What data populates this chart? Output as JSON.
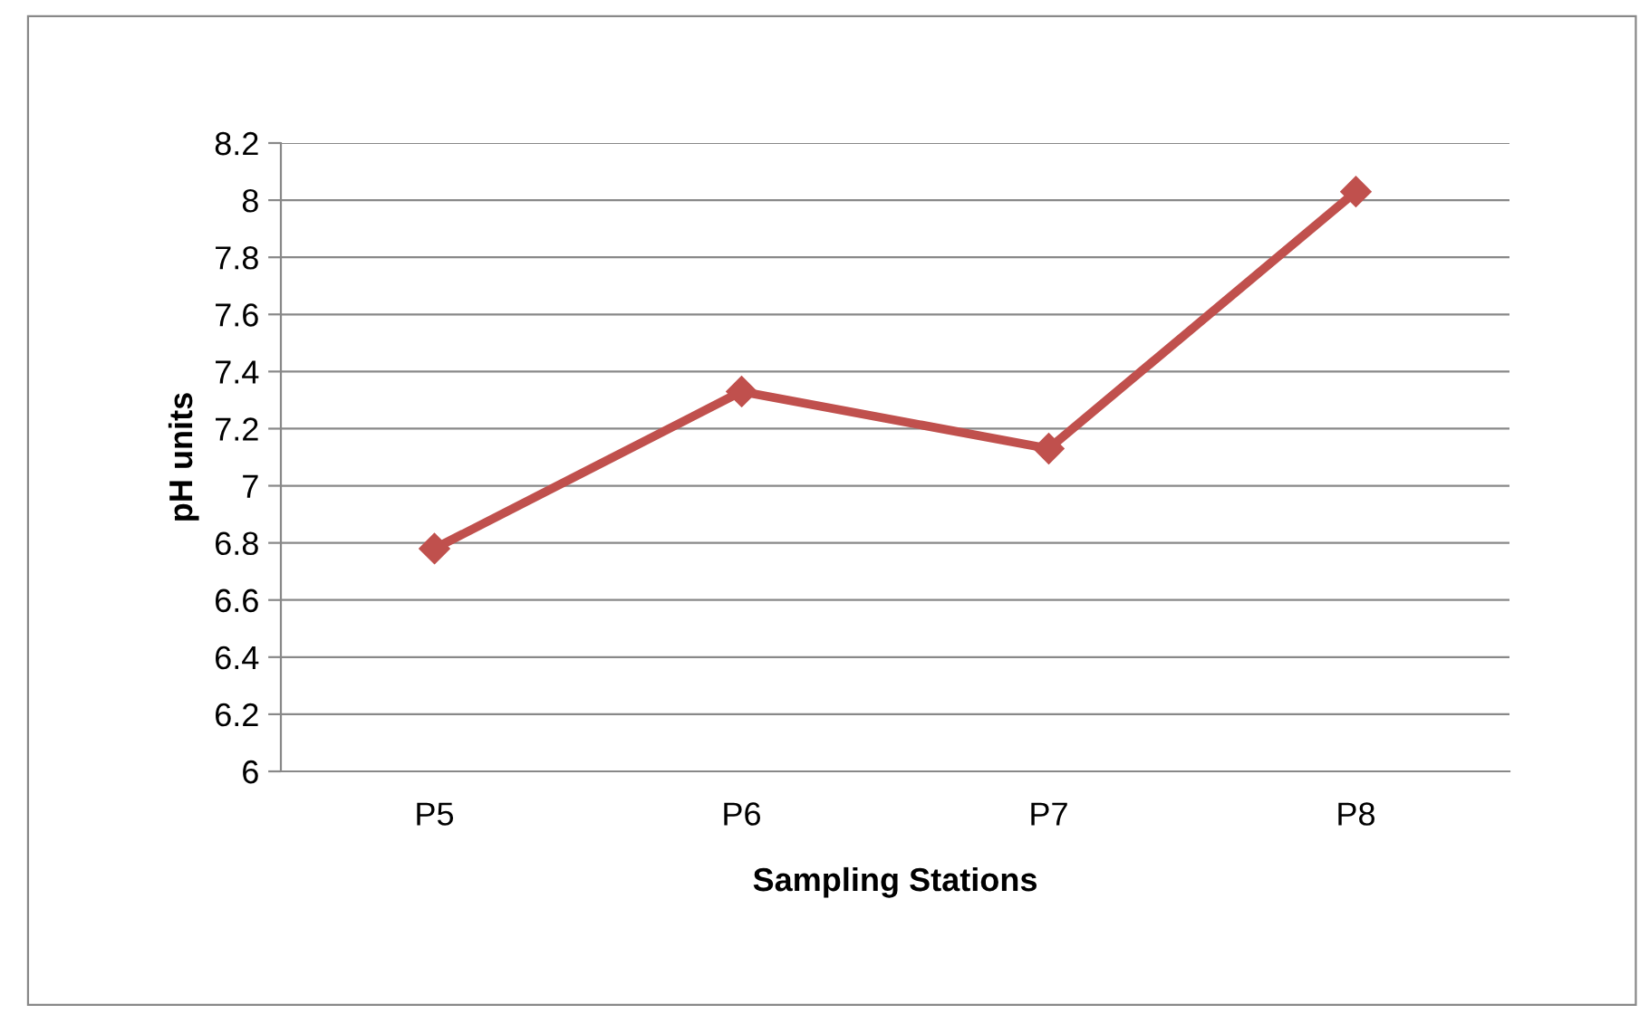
{
  "chart_data": {
    "type": "line",
    "xlabel": "Sampling Stations",
    "ylabel": "pH units",
    "categories": [
      "P5",
      "P6",
      "P7",
      "P8"
    ],
    "series": [
      {
        "color": "#c0504d",
        "values": [
          6.78,
          7.33,
          7.13,
          8.03
        ]
      }
    ],
    "ylim": [
      6,
      8.2
    ],
    "yticks": [
      6,
      6.2,
      6.4,
      6.6,
      6.8,
      7,
      7.2,
      7.4,
      7.6,
      7.8,
      8,
      8.2
    ],
    "grid": "y",
    "legend": false,
    "marker": "diamond",
    "line_style": "solid"
  }
}
